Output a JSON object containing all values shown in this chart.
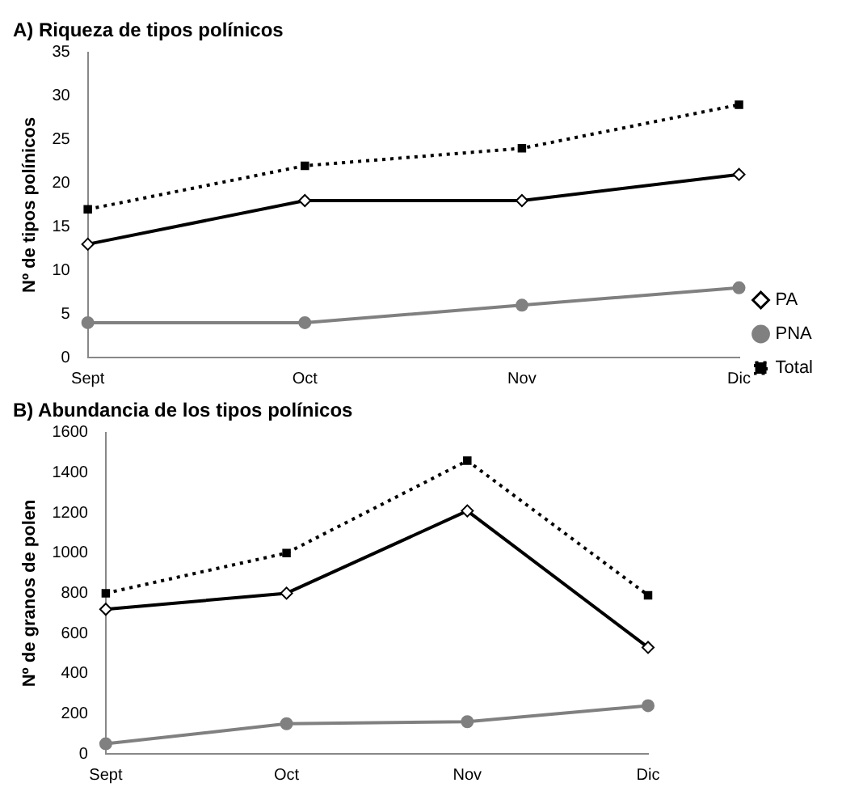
{
  "chart_data": [
    {
      "type": "line",
      "title": "A) Riqueza de tipos polínicos",
      "ylabel": "Nº de tipos polínicos",
      "categories": [
        "Sept",
        "Oct",
        "Nov",
        "Dic"
      ],
      "ylim": [
        0,
        35
      ],
      "yticks": [
        0,
        5,
        10,
        15,
        20,
        25,
        30,
        35
      ],
      "grid": false,
      "legend": "bottom right",
      "series": [
        {
          "name": "PA",
          "color": "#000000",
          "values": [
            13,
            18,
            18,
            21
          ],
          "marker": "diamond",
          "line_style": "solid"
        },
        {
          "name": "PNA",
          "color": "#808080",
          "values": [
            4,
            4,
            6,
            8
          ],
          "marker": "circle",
          "line_style": "solid"
        },
        {
          "name": "Total",
          "color": "#000000",
          "values": [
            17,
            22,
            24,
            29
          ],
          "marker": "square",
          "line_style": "dotted"
        }
      ]
    },
    {
      "type": "line",
      "title": "B) Abundancia de los tipos polínicos",
      "ylabel": "Nº de granos de polen",
      "categories": [
        "Sept",
        "Oct",
        "Nov",
        "Dic"
      ],
      "ylim": [
        0,
        1600
      ],
      "yticks": [
        0,
        200,
        400,
        600,
        800,
        1000,
        1200,
        1400,
        1600
      ],
      "grid": false,
      "series": [
        {
          "color": "#000000",
          "values": [
            720,
            800,
            1210,
            530
          ],
          "marker": "diamond",
          "line_style": "solid"
        },
        {
          "color": "#808080",
          "values": [
            50,
            150,
            160,
            240
          ],
          "marker": "circle",
          "line_style": "solid"
        },
        {
          "color": "#000000",
          "values": [
            800,
            1000,
            1460,
            790
          ],
          "marker": "square",
          "line_style": "dotted"
        }
      ]
    }
  ]
}
